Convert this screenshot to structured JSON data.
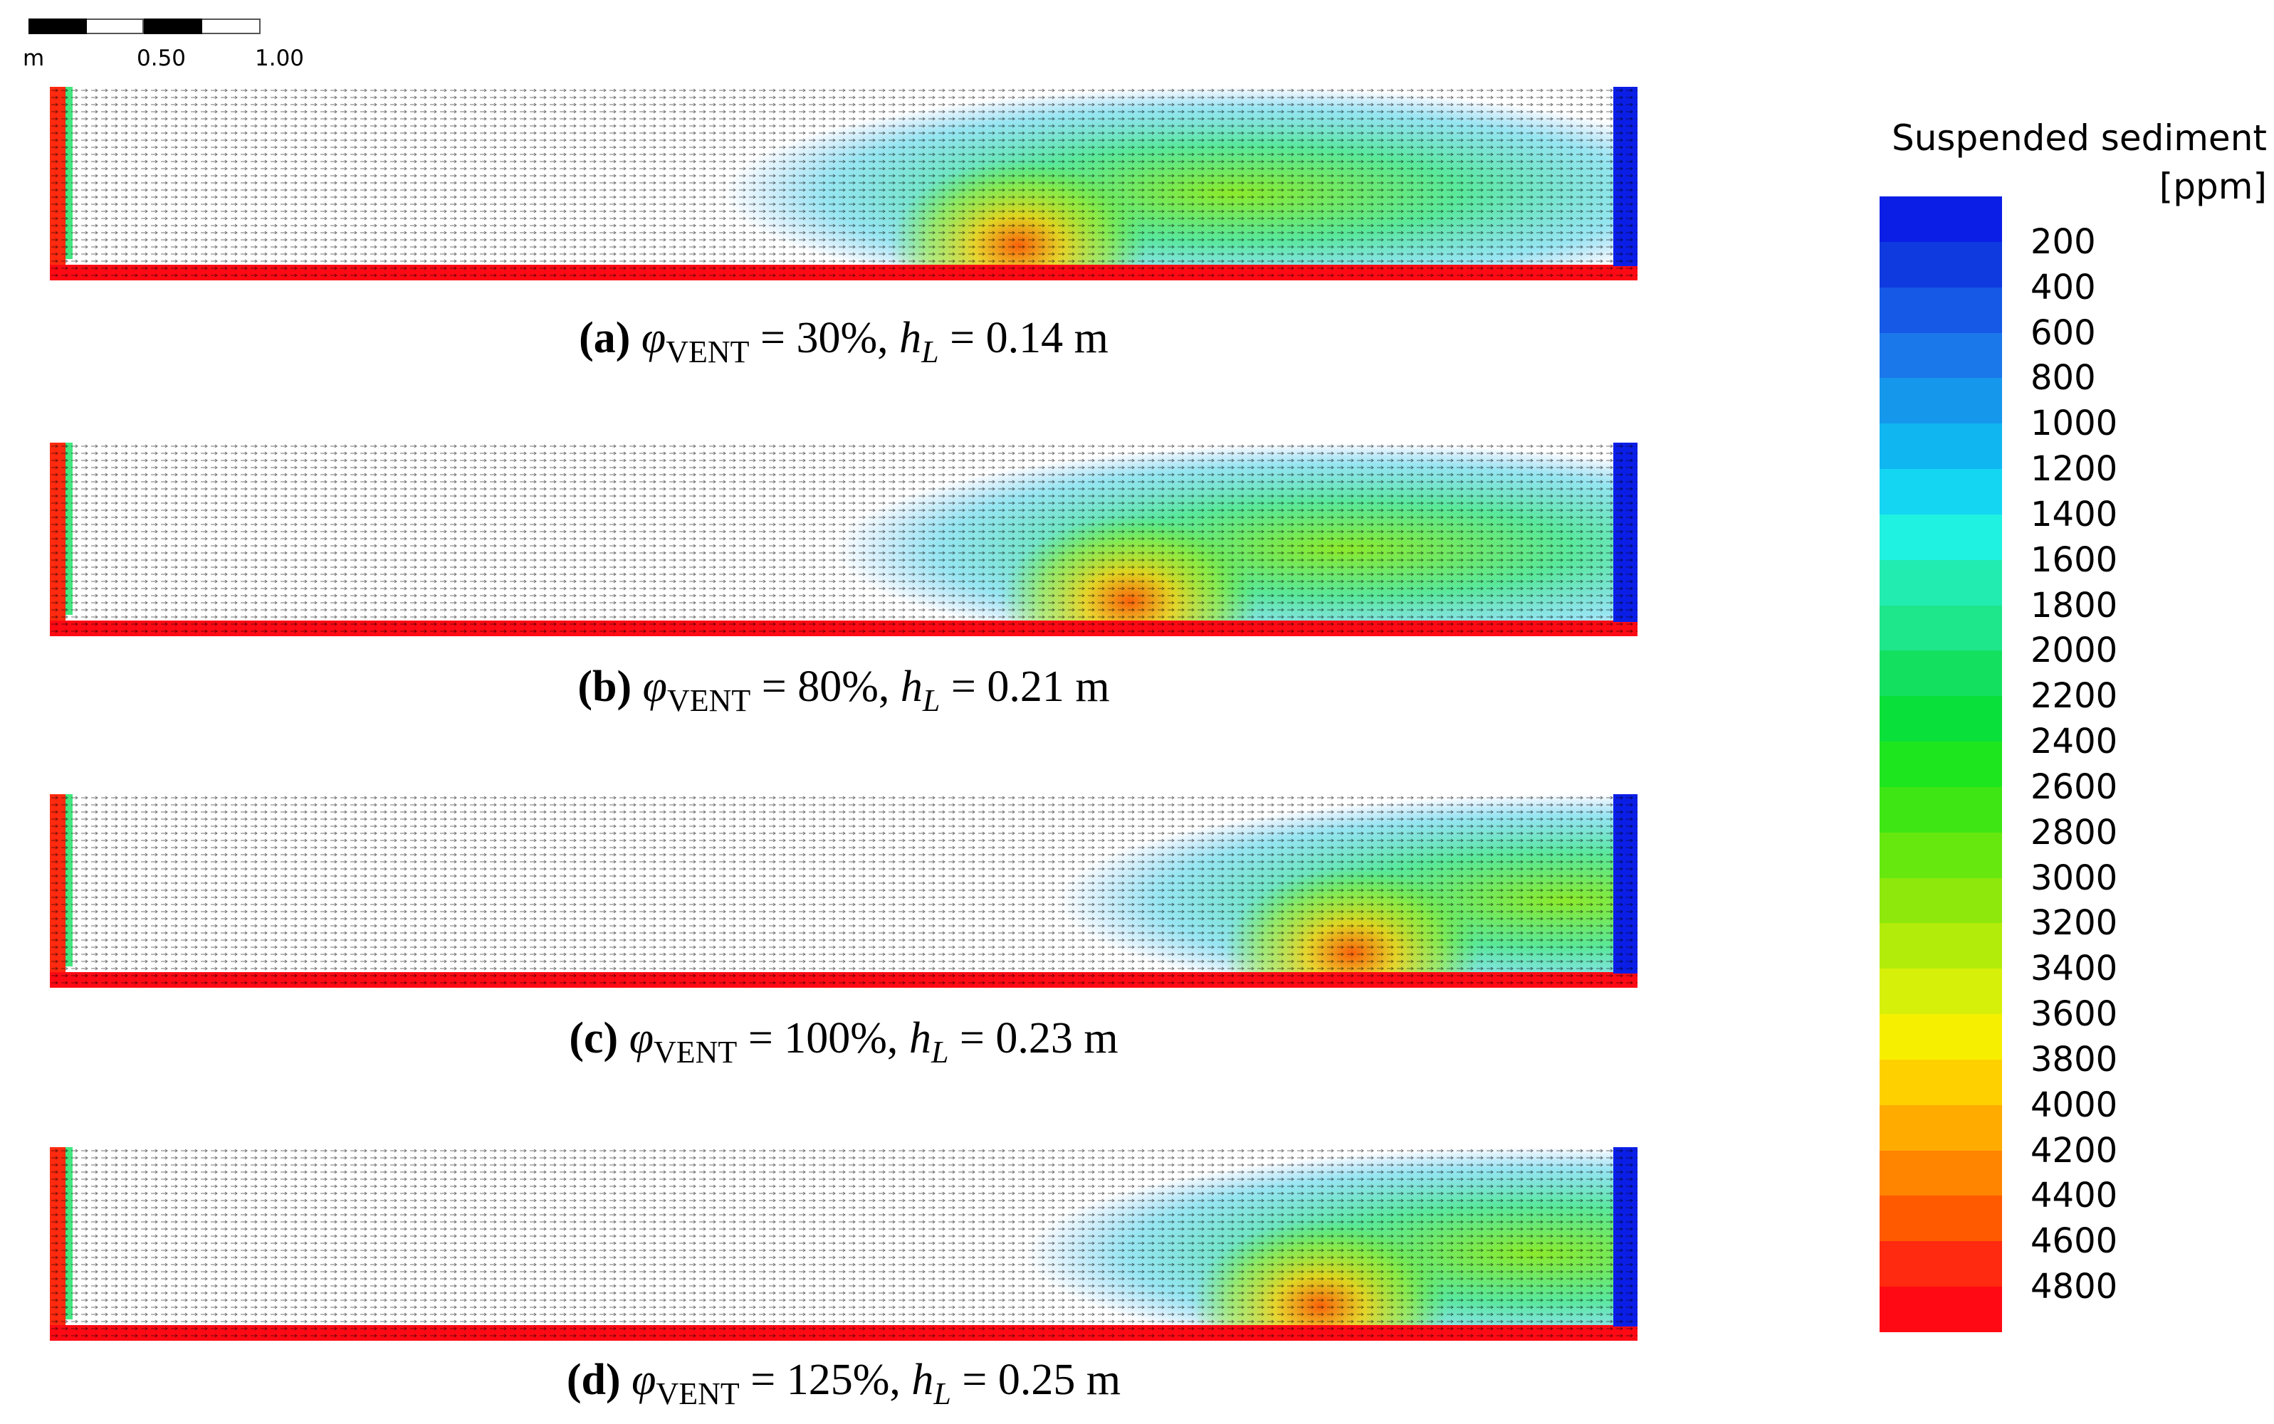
{
  "scale_bar": {
    "unit": "m",
    "ticks": [
      "0.50",
      "1.00"
    ]
  },
  "panels": [
    {
      "letter": "(a)",
      "phi_symbol": "φ",
      "phi_sub": "VENT",
      "phi_value": " = 30%, ",
      "h_symbol": "h",
      "h_sub": "L",
      "h_value": " = 0.14 m",
      "hotspot": 0.61
    },
    {
      "letter": "(b)",
      "phi_symbol": "φ",
      "phi_sub": "VENT",
      "phi_value": " = 80%, ",
      "h_symbol": "h",
      "h_sub": "L",
      "h_value": " = 0.21 m",
      "hotspot": 0.68
    },
    {
      "letter": "(c)",
      "phi_symbol": "φ",
      "phi_sub": "VENT",
      "phi_value": " = 100%, ",
      "h_symbol": "h",
      "h_sub": "L",
      "h_value": " = 0.23 m",
      "hotspot": 0.82
    },
    {
      "letter": "(d)",
      "phi_symbol": "φ",
      "phi_sub": "VENT",
      "phi_value": " = 125%, ",
      "h_symbol": "h",
      "h_sub": "L",
      "h_value": " = 0.25 m",
      "hotspot": 0.8
    }
  ],
  "colorbar": {
    "title_line1": "Suspended sediment",
    "title_line2": "[ppm]",
    "labels": [
      "200",
      "400",
      "600",
      "800",
      "1000",
      "1200",
      "1400",
      "1600",
      "1800",
      "2000",
      "2200",
      "2400",
      "2600",
      "2800",
      "3000",
      "3200",
      "3400",
      "3600",
      "3800",
      "4000",
      "4200",
      "4400",
      "4600",
      "4800"
    ],
    "colors": [
      "#0a1ee6",
      "#0f3ae0",
      "#1559e6",
      "#1a78ea",
      "#1597ec",
      "#10b6f0",
      "#14d6f2",
      "#1ff2e0",
      "#22ecb0",
      "#1ee68a",
      "#14e060",
      "#0ae03a",
      "#1ee61e",
      "#3ee614",
      "#66e80f",
      "#8ee80c",
      "#b2ec0a",
      "#d6f00a",
      "#f6f000",
      "#ffd000",
      "#ffab00",
      "#ff8500",
      "#ff5a00",
      "#ff2a0f",
      "#ff0a14"
    ]
  }
}
